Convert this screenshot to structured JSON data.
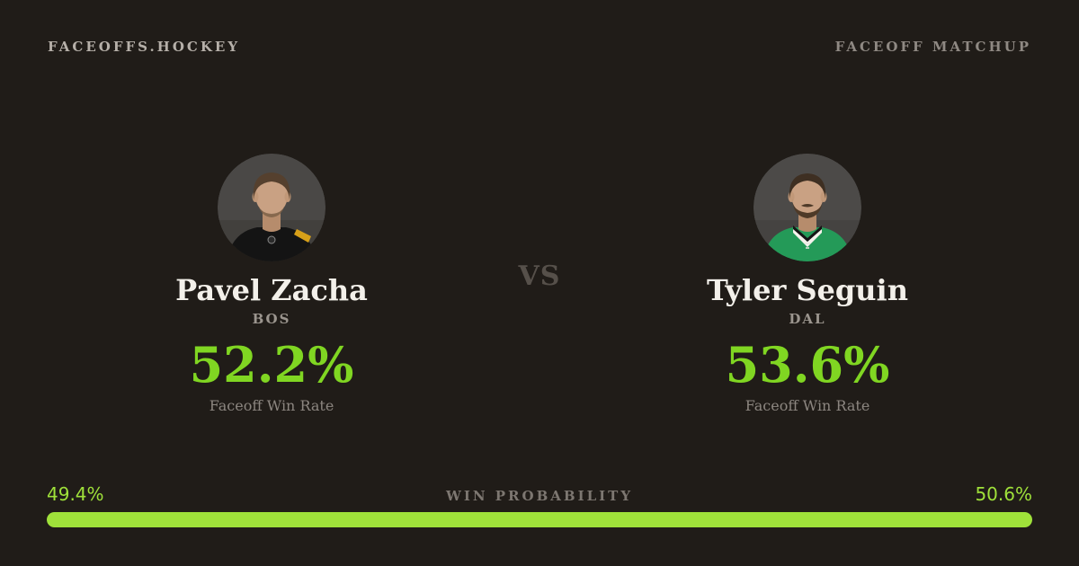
{
  "colors": {
    "background": "#201c18",
    "brand_color": "#b6b0a9",
    "label_color": "#8f8983",
    "text_primary": "#f3f0ea",
    "text_muted": "#9b958e",
    "text_dim": "#8c8680",
    "vs_color": "#56504a",
    "accent_green": "#80d622",
    "bar_green": "#9fe13a",
    "winprob_label": "#7d7771",
    "avatar_bg": "#42403d"
  },
  "header": {
    "brand": "FACEOFFS.HOCKEY",
    "label": "FACEOFF MATCHUP"
  },
  "matchup": {
    "vs_label": "VS",
    "players": [
      {
        "name": "Pavel Zacha",
        "team": "BOS",
        "win_rate": "52.2%",
        "stat_label": "Faceoff Win Rate",
        "jersey_color": "#141414",
        "jersey_trim": "#d7a019"
      },
      {
        "name": "Tyler Seguin",
        "team": "DAL",
        "win_rate": "53.6%",
        "stat_label": "Faceoff Win Rate",
        "jersey_color": "#249a58",
        "jersey_trim": "#f5f2ec"
      }
    ]
  },
  "win_probability": {
    "label": "WIN PROBABILITY",
    "left_value": "49.4%",
    "right_value": "50.6%",
    "left_pct": 49.4,
    "right_pct": 50.6
  }
}
